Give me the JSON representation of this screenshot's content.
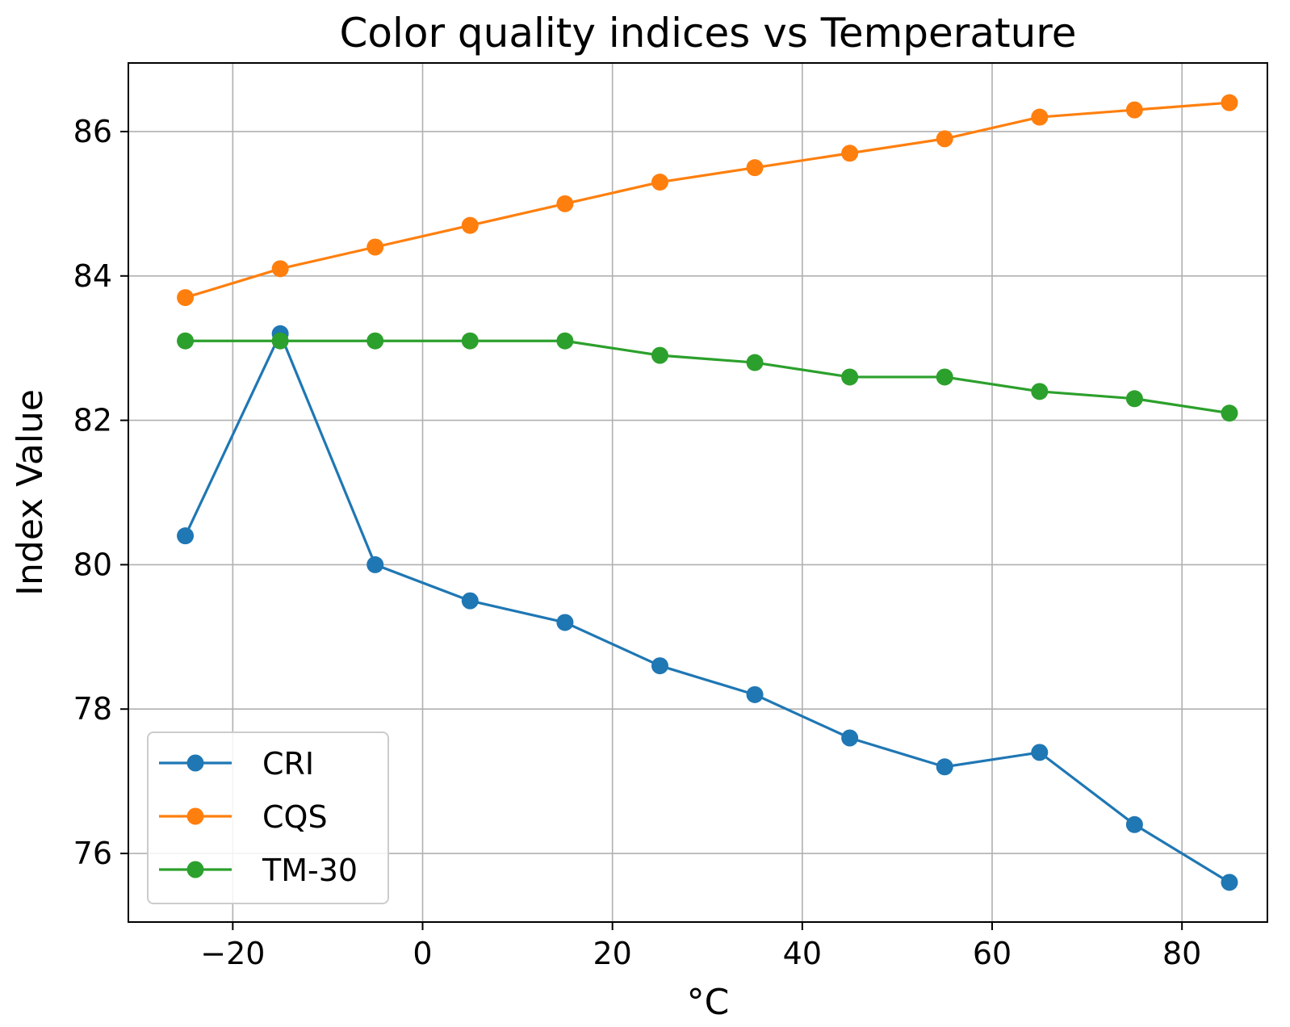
{
  "chart_data": {
    "type": "line",
    "title": "Color quality indices vs Temperature",
    "xlabel": "°C",
    "ylabel": "Index Value",
    "x": [
      -25,
      -15,
      -5,
      5,
      15,
      25,
      35,
      45,
      55,
      65,
      75,
      85
    ],
    "xlim": [
      -31,
      89
    ],
    "ylim": [
      75.05,
      86.95
    ],
    "xticks": [
      -20,
      0,
      20,
      40,
      60,
      80
    ],
    "xtick_labels": [
      "−20",
      "0",
      "20",
      "40",
      "60",
      "80"
    ],
    "yticks": [
      76,
      78,
      80,
      82,
      84,
      86
    ],
    "ytick_labels": [
      "76",
      "78",
      "80",
      "82",
      "84",
      "86"
    ],
    "grid": true,
    "legend_position": "lower-left",
    "series": [
      {
        "name": "CRI",
        "color": "#1f77b4",
        "marker": "circle",
        "values": [
          80.4,
          83.2,
          80.0,
          79.5,
          79.2,
          78.6,
          78.2,
          77.6,
          77.2,
          77.4,
          76.4,
          75.6
        ]
      },
      {
        "name": "CQS",
        "color": "#ff7f0e",
        "marker": "circle",
        "values": [
          83.7,
          84.1,
          84.4,
          84.7,
          85.0,
          85.3,
          85.5,
          85.7,
          85.9,
          86.2,
          86.3,
          86.4
        ]
      },
      {
        "name": "TM-30",
        "color": "#2ca02c",
        "marker": "circle",
        "values": [
          83.1,
          83.1,
          83.1,
          83.1,
          83.1,
          82.9,
          82.8,
          82.6,
          82.6,
          82.4,
          82.3,
          82.1
        ]
      }
    ]
  }
}
